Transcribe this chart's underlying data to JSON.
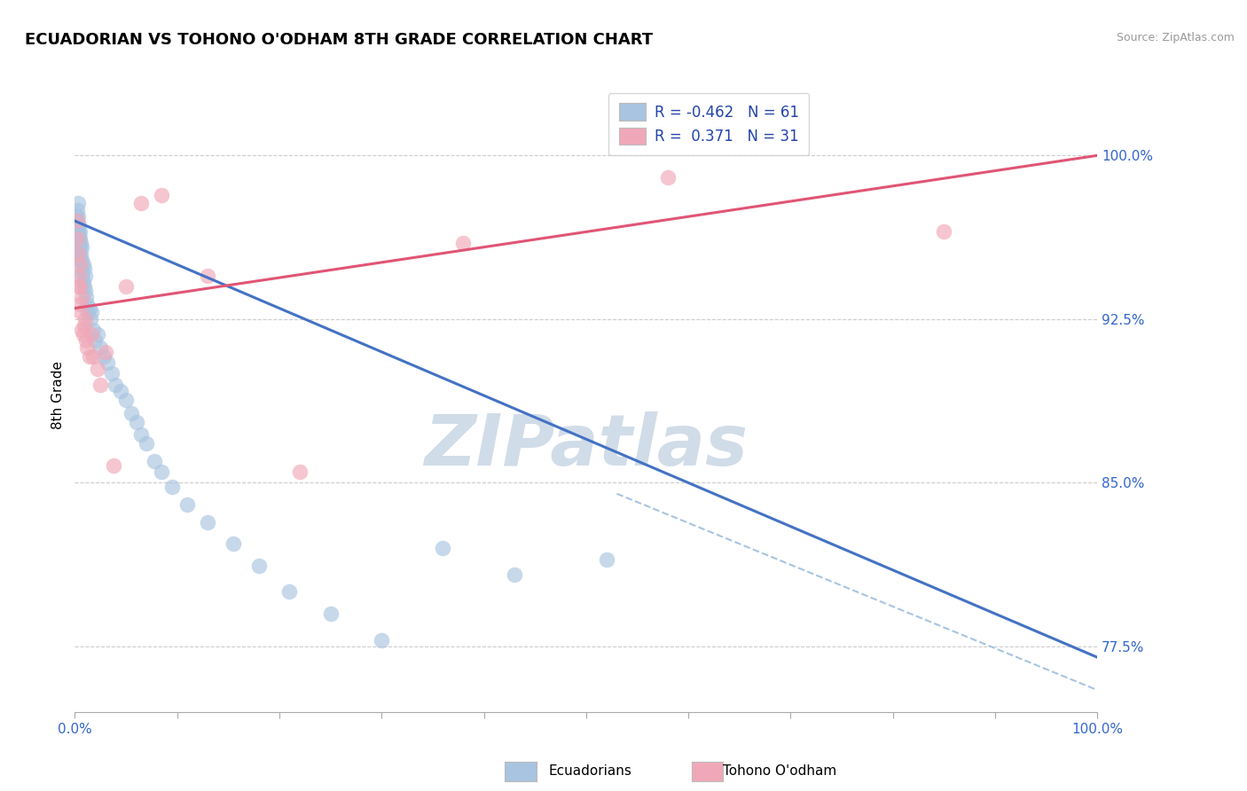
{
  "title": "ECUADORIAN VS TOHONO O'ODHAM 8TH GRADE CORRELATION CHART",
  "source_text": "Source: ZipAtlas.com",
  "ylabel": "8th Grade",
  "xlim": [
    0.0,
    1.0
  ],
  "ylim": [
    0.745,
    1.035
  ],
  "yticks": [
    0.775,
    0.85,
    0.925,
    1.0
  ],
  "ytick_labels": [
    "77.5%",
    "85.0%",
    "92.5%",
    "100.0%"
  ],
  "xticks": [
    0.0,
    0.1,
    0.2,
    0.3,
    0.4,
    0.5,
    0.6,
    0.7,
    0.8,
    0.9,
    1.0
  ],
  "xtick_labels_sparse": {
    "0.0": "0.0%",
    "1.0": "100.0%"
  },
  "legend_blue_r": "-0.462",
  "legend_blue_n": "61",
  "legend_pink_r": "0.371",
  "legend_pink_n": "31",
  "blue_color": "#a8c4e0",
  "pink_color": "#f0a8b8",
  "blue_line_color": "#4472c4",
  "pink_line_color": "#e05575",
  "watermark_color": "#d0dce8",
  "background_color": "#ffffff",
  "grid_color": "#cccccc",
  "blue_scatter_x": [
    0.001,
    0.002,
    0.002,
    0.002,
    0.003,
    0.003,
    0.003,
    0.003,
    0.004,
    0.004,
    0.004,
    0.004,
    0.005,
    0.005,
    0.005,
    0.005,
    0.006,
    0.006,
    0.006,
    0.007,
    0.007,
    0.007,
    0.008,
    0.008,
    0.009,
    0.009,
    0.01,
    0.01,
    0.011,
    0.012,
    0.013,
    0.014,
    0.015,
    0.016,
    0.018,
    0.02,
    0.022,
    0.025,
    0.028,
    0.032,
    0.036,
    0.04,
    0.045,
    0.05,
    0.055,
    0.06,
    0.065,
    0.07,
    0.078,
    0.085,
    0.095,
    0.11,
    0.13,
    0.155,
    0.18,
    0.21,
    0.25,
    0.3,
    0.36,
    0.43,
    0.52
  ],
  "blue_scatter_y": [
    0.972,
    0.97,
    0.968,
    0.975,
    0.965,
    0.958,
    0.972,
    0.978,
    0.96,
    0.963,
    0.968,
    0.955,
    0.958,
    0.952,
    0.962,
    0.965,
    0.948,
    0.955,
    0.96,
    0.945,
    0.952,
    0.958,
    0.942,
    0.95,
    0.94,
    0.948,
    0.938,
    0.945,
    0.935,
    0.932,
    0.928,
    0.93,
    0.925,
    0.928,
    0.92,
    0.915,
    0.918,
    0.912,
    0.908,
    0.905,
    0.9,
    0.895,
    0.892,
    0.888,
    0.882,
    0.878,
    0.872,
    0.868,
    0.86,
    0.855,
    0.848,
    0.84,
    0.832,
    0.822,
    0.812,
    0.8,
    0.79,
    0.778,
    0.82,
    0.808,
    0.815
  ],
  "pink_scatter_x": [
    0.002,
    0.002,
    0.003,
    0.003,
    0.004,
    0.005,
    0.005,
    0.005,
    0.006,
    0.007,
    0.007,
    0.008,
    0.009,
    0.01,
    0.011,
    0.012,
    0.014,
    0.016,
    0.018,
    0.022,
    0.025,
    0.03,
    0.038,
    0.05,
    0.065,
    0.085,
    0.13,
    0.22,
    0.38,
    0.58,
    0.85
  ],
  "pink_scatter_y": [
    0.962,
    0.97,
    0.94,
    0.955,
    0.945,
    0.932,
    0.94,
    0.95,
    0.928,
    0.92,
    0.935,
    0.918,
    0.922,
    0.925,
    0.915,
    0.912,
    0.908,
    0.918,
    0.908,
    0.902,
    0.895,
    0.91,
    0.858,
    0.94,
    0.978,
    0.982,
    0.945,
    0.855,
    0.96,
    0.99,
    0.965
  ],
  "blue_trend_start_y": 0.97,
  "blue_trend_end_y": 0.77,
  "pink_trend_start_y": 0.93,
  "pink_trend_end_y": 1.0,
  "dash_line_x": [
    0.53,
    1.0
  ],
  "dash_line_y": [
    0.845,
    0.755
  ]
}
